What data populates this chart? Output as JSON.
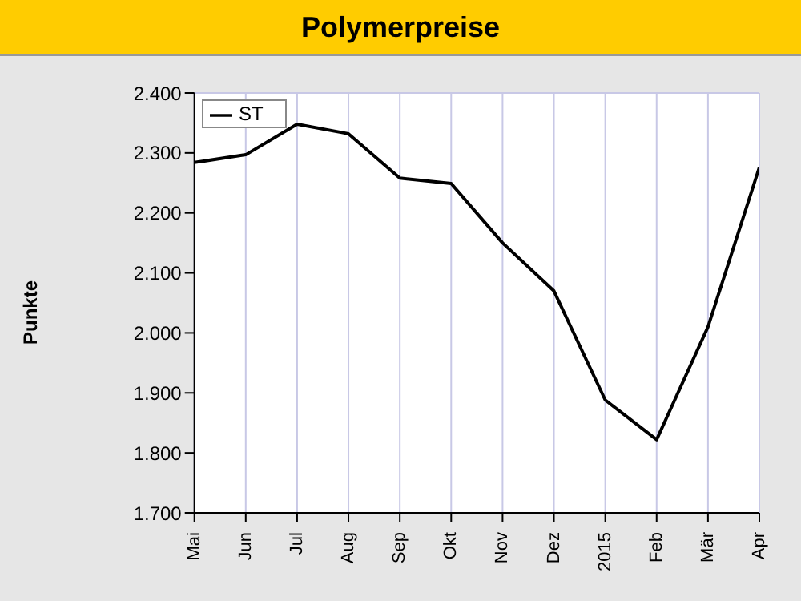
{
  "chart_data": {
    "type": "line",
    "title": "Polymerpreise",
    "ylabel": "Punkte",
    "categories": [
      "Mai",
      "Jun",
      "Jul",
      "Aug",
      "Sep",
      "Okt",
      "Nov",
      "Dez",
      "2015",
      "Feb",
      "Mär",
      "Apr"
    ],
    "series": [
      {
        "name": "ST",
        "color": "#000000",
        "values": [
          2284,
          2297,
          2348,
          2332,
          2258,
          2249,
          2150,
          2070,
          1888,
          1822,
          2010,
          2276
        ]
      }
    ],
    "ylim": [
      1700,
      2400
    ],
    "yticks": [
      {
        "value": 1700,
        "label": "1.700"
      },
      {
        "value": 1800,
        "label": "1.800"
      },
      {
        "value": 1900,
        "label": "1.900"
      },
      {
        "value": 2000,
        "label": "2.000"
      },
      {
        "value": 2100,
        "label": "2.100"
      },
      {
        "value": 2200,
        "label": "2.200"
      },
      {
        "value": 2300,
        "label": "2.300"
      },
      {
        "value": 2400,
        "label": "2.400"
      }
    ],
    "grid": true,
    "legend": "top left",
    "marker": "none",
    "line_style": "solid"
  }
}
